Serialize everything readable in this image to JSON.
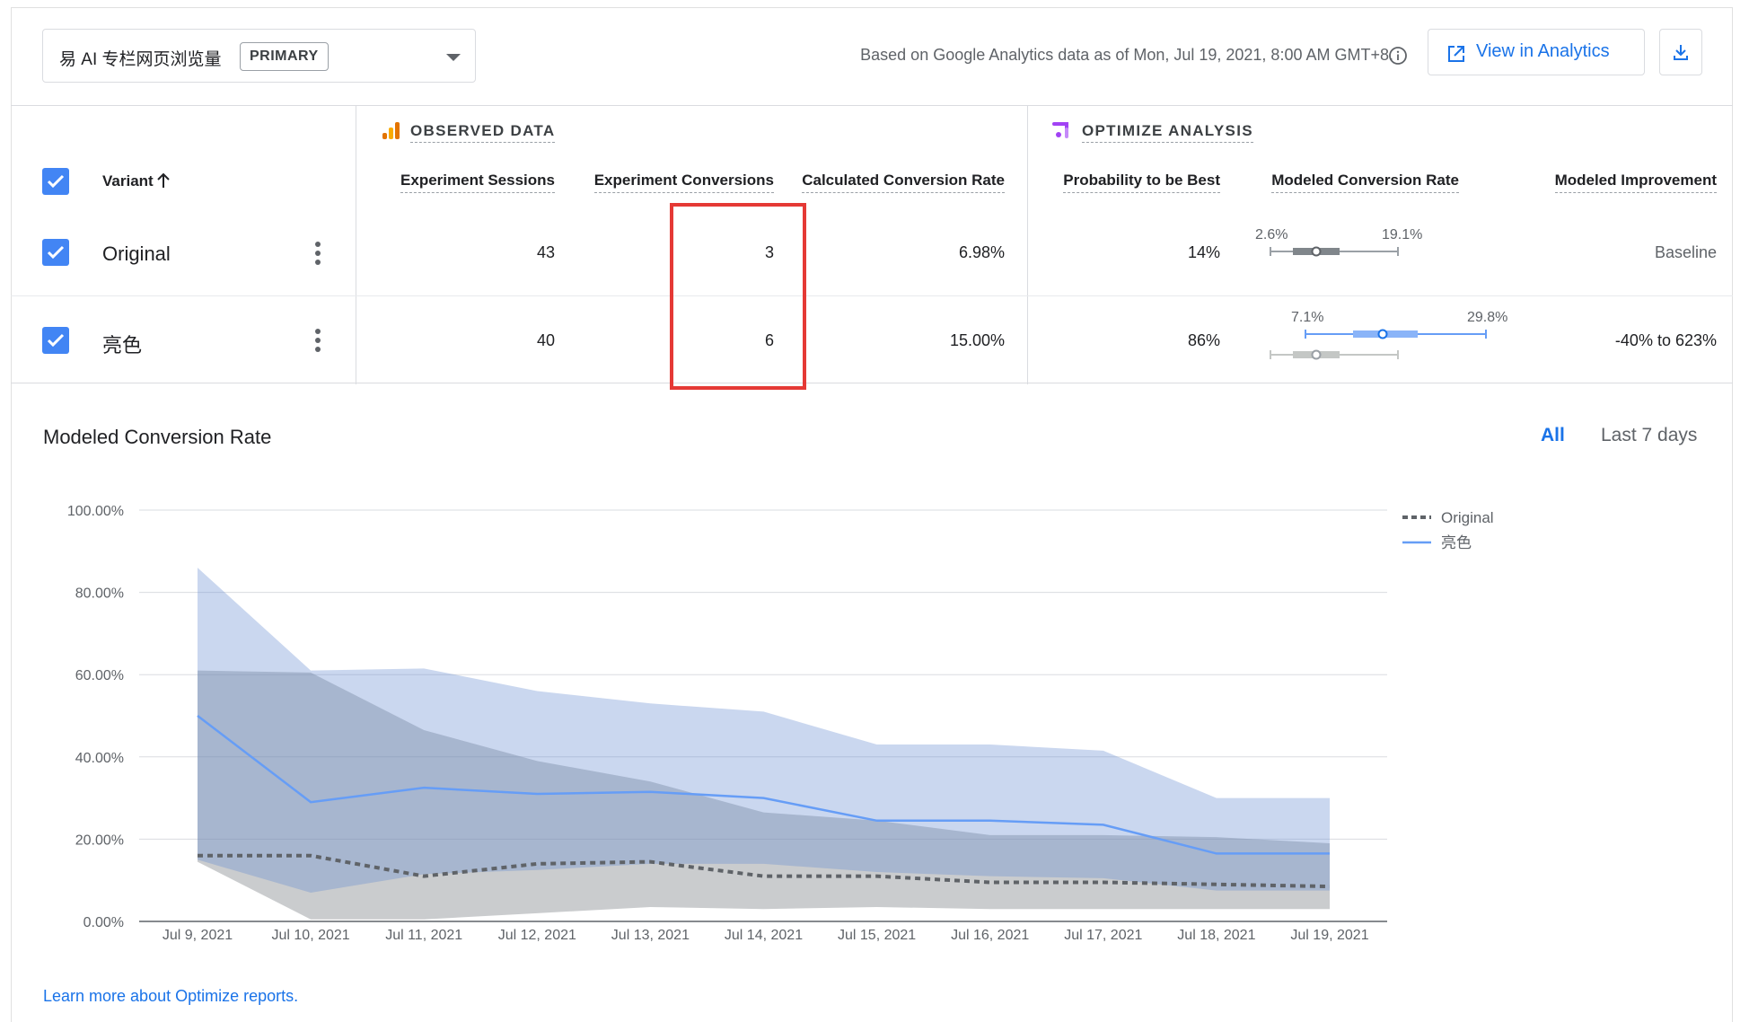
{
  "header": {
    "objective_name": "易 AI 专栏网页浏览量",
    "objective_badge": "PRIMARY",
    "data_note": "Based on Google Analytics data as of Mon, Jul 19, 2021, 8:00 AM GMT+8.",
    "view_analytics_label": "View in Analytics"
  },
  "table": {
    "observed_section": "OBSERVED DATA",
    "optimize_section": "OPTIMIZE ANALYSIS",
    "variant_header": "Variant",
    "columns": {
      "sessions": "Experiment Sessions",
      "conversions": "Experiment Conversions",
      "calc_rate": "Calculated Conversion Rate",
      "prob_best": "Probability to be Best",
      "modeled_rate": "Modeled Conversion Rate",
      "modeled_improvement": "Modeled Improvement"
    },
    "rows": [
      {
        "variant": "Original",
        "sessions": "43",
        "conversions": "3",
        "calc_rate": "6.98%",
        "prob_best": "14%",
        "ci_low": "2.6%",
        "ci_high": "19.1%",
        "improvement": "Baseline"
      },
      {
        "variant": "亮色",
        "sessions": "40",
        "conversions": "6",
        "calc_rate": "15.00%",
        "prob_best": "86%",
        "ci_low": "7.1%",
        "ci_high": "29.8%",
        "improvement": "-40% to 623%"
      }
    ]
  },
  "chart_section": {
    "title": "Modeled Conversion Rate",
    "range_all": "All",
    "range_last7": "Last 7 days"
  },
  "chart_data": {
    "type": "line",
    "x": [
      "Jul 9, 2021",
      "Jul 10, 2021",
      "Jul 11, 2021",
      "Jul 12, 2021",
      "Jul 13, 2021",
      "Jul 14, 2021",
      "Jul 15, 2021",
      "Jul 16, 2021",
      "Jul 17, 2021",
      "Jul 18, 2021",
      "Jul 19, 2021"
    ],
    "y_ticks": [
      "0.00%",
      "20.00%",
      "40.00%",
      "60.00%",
      "80.00%",
      "100.00%"
    ],
    "ylim": [
      0,
      100
    ],
    "grid": true,
    "legend_position": "top-right",
    "series": [
      {
        "name": "Original",
        "style": "dotted",
        "color": "#5f6368",
        "values": [
          16,
          16,
          11,
          14,
          14.5,
          11,
          11,
          9.5,
          9.5,
          9,
          8.5
        ],
        "band_low": [
          14.5,
          0.5,
          0.5,
          2,
          3.5,
          3,
          3.5,
          3,
          3,
          3,
          3
        ],
        "band_high": [
          61,
          60.5,
          46.5,
          39,
          34,
          26.5,
          24.5,
          21,
          21,
          20.5,
          19
        ]
      },
      {
        "name": "亮色",
        "style": "solid",
        "color": "#669df6",
        "values": [
          50,
          29,
          32.5,
          31,
          31.5,
          30,
          24.5,
          24.5,
          23.5,
          16.5,
          16.5
        ],
        "band_low": [
          15,
          7,
          11.5,
          12.5,
          14,
          14,
          12,
          11,
          10.5,
          7.5,
          7.5
        ],
        "band_high": [
          86,
          61,
          61.5,
          56,
          53,
          51,
          43,
          43,
          41.5,
          30,
          30
        ]
      }
    ]
  },
  "footer": {
    "learn_more": "Learn more about Optimize reports."
  }
}
